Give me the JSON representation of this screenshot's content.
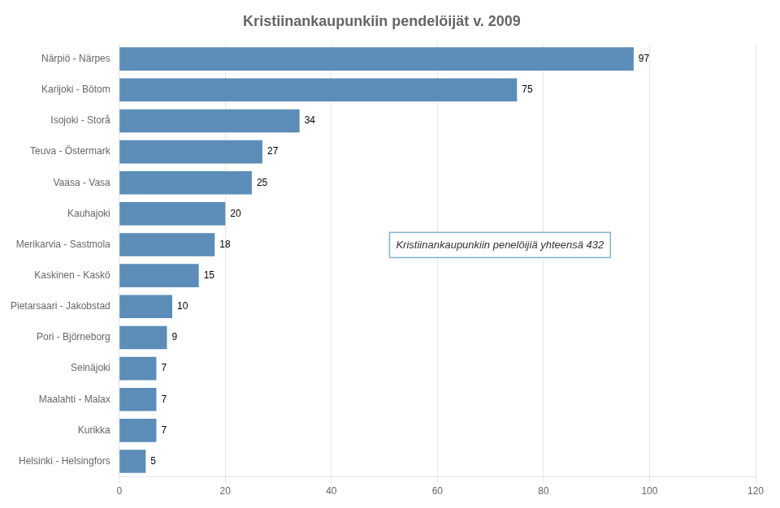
{
  "chart_data": {
    "type": "bar",
    "orientation": "horizontal",
    "title": "Kristiinankaupunkiin pendelöijät v. 2009",
    "categories": [
      "Helsinki - Helsingfors",
      "Kurikka",
      "Maalahti - Malax",
      "Seinäjoki",
      "Pori - Björneborg",
      "Pietarsaari - Jakobstad",
      "Kaskinen - Kaskö",
      "Merikarvia - Sastmola",
      "Kauhajoki",
      "Vaasa - Vasa",
      "Teuva - Östermark",
      "Isojoki - Storå",
      "Karijoki - Bötom",
      "Närpiö - Närpes"
    ],
    "values": [
      5,
      7,
      7,
      7,
      9,
      10,
      15,
      18,
      20,
      25,
      27,
      34,
      75,
      97
    ],
    "color": "#5B8DB8",
    "xlim": [
      0,
      120
    ],
    "xticks": [
      0,
      20,
      40,
      60,
      80,
      100,
      120
    ],
    "grid": true,
    "legend": false,
    "data_labels": true,
    "annotation": {
      "text": "Kristiinankaupunkiin penelöijiä yhteensä 432",
      "color": "#7FAFD4"
    }
  }
}
